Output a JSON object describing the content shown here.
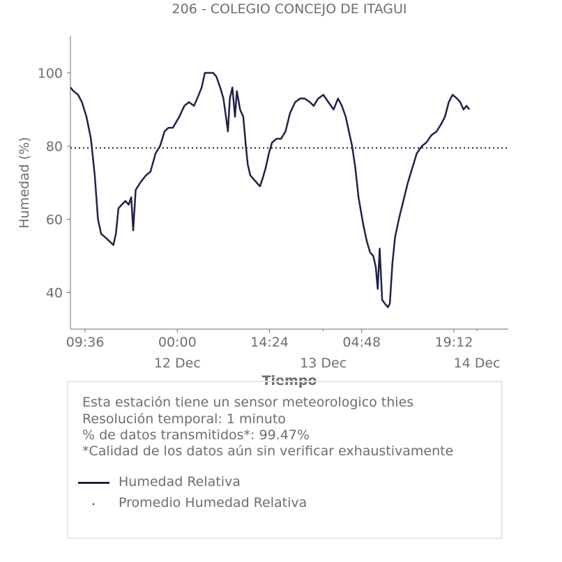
{
  "chart_data": {
    "type": "line",
    "title": "206 - COLEGIO CONCEJO DE ITAGUI",
    "xlabel": "Tiempo",
    "ylabel": "Humedad (%)",
    "ylim": [
      30,
      110
    ],
    "yticks": [
      40,
      60,
      80,
      100
    ],
    "x_range_hours": [
      -16.7,
      51.7
    ],
    "x_ticks": [
      {
        "hour": -14.4,
        "label": "09:36",
        "sublabel": ""
      },
      {
        "hour": 0,
        "label": "00:00",
        "sublabel": "12 Dec"
      },
      {
        "hour": 14.4,
        "label": "14:24",
        "sublabel": ""
      },
      {
        "hour": 22.8,
        "label": "",
        "sublabel": "13 Dec"
      },
      {
        "hour": 28.8,
        "label": "04:48",
        "sublabel": ""
      },
      {
        "hour": 43.2,
        "label": "19:12",
        "sublabel": ""
      },
      {
        "hour": 46.8,
        "label": "",
        "sublabel": "14 Dec"
      }
    ],
    "grid": false,
    "series": [
      {
        "name": "Humedad Relativa",
        "color": "#20224a",
        "style": "solid",
        "points": [
          [
            -16.7,
            96
          ],
          [
            -16.2,
            95
          ],
          [
            -15.5,
            94
          ],
          [
            -14.9,
            92
          ],
          [
            -14.2,
            88
          ],
          [
            -13.5,
            82
          ],
          [
            -12.9,
            72
          ],
          [
            -12.4,
            60
          ],
          [
            -11.9,
            56
          ],
          [
            -11.2,
            55
          ],
          [
            -10.6,
            54
          ],
          [
            -10.0,
            53
          ],
          [
            -9.6,
            56
          ],
          [
            -9.2,
            63
          ],
          [
            -8.7,
            64
          ],
          [
            -8.1,
            65
          ],
          [
            -7.6,
            64
          ],
          [
            -7.2,
            66
          ],
          [
            -6.9,
            57
          ],
          [
            -6.5,
            68
          ],
          [
            -5.8,
            70
          ],
          [
            -4.9,
            72
          ],
          [
            -4.2,
            73
          ],
          [
            -3.4,
            78
          ],
          [
            -2.7,
            80
          ],
          [
            -2.0,
            84
          ],
          [
            -1.4,
            85
          ],
          [
            -0.7,
            85
          ],
          [
            0.3,
            88
          ],
          [
            1.1,
            91
          ],
          [
            1.8,
            92
          ],
          [
            2.6,
            91
          ],
          [
            3.1,
            93
          ],
          [
            3.8,
            96
          ],
          [
            4.3,
            100
          ],
          [
            4.9,
            100
          ],
          [
            5.6,
            100
          ],
          [
            6.1,
            99
          ],
          [
            6.7,
            96
          ],
          [
            7.2,
            93
          ],
          [
            7.6,
            88
          ],
          [
            7.9,
            84
          ],
          [
            8.2,
            93
          ],
          [
            8.6,
            96
          ],
          [
            9.0,
            88
          ],
          [
            9.3,
            95
          ],
          [
            9.8,
            90
          ],
          [
            10.3,
            88
          ],
          [
            10.7,
            80
          ],
          [
            11.0,
            75
          ],
          [
            11.4,
            72
          ],
          [
            11.9,
            71
          ],
          [
            12.4,
            70
          ],
          [
            12.9,
            69
          ],
          [
            13.3,
            71
          ],
          [
            13.8,
            74
          ],
          [
            14.3,
            78
          ],
          [
            14.8,
            81
          ],
          [
            15.5,
            82
          ],
          [
            16.2,
            82
          ],
          [
            16.9,
            84
          ],
          [
            17.6,
            89
          ],
          [
            18.4,
            92
          ],
          [
            19.2,
            93
          ],
          [
            19.9,
            93
          ],
          [
            20.7,
            92
          ],
          [
            21.3,
            91
          ],
          [
            22.0,
            93
          ],
          [
            22.8,
            94
          ],
          [
            23.6,
            92
          ],
          [
            24.4,
            90
          ],
          [
            25.1,
            93
          ],
          [
            25.7,
            91
          ],
          [
            26.3,
            88
          ],
          [
            26.8,
            84
          ],
          [
            27.3,
            80
          ],
          [
            27.8,
            74
          ],
          [
            28.3,
            66
          ],
          [
            28.7,
            62
          ],
          [
            29.1,
            58
          ],
          [
            29.6,
            54
          ],
          [
            30.1,
            51
          ],
          [
            30.6,
            50
          ],
          [
            31.0,
            47
          ],
          [
            31.3,
            41
          ],
          [
            31.6,
            52
          ],
          [
            32.0,
            38
          ],
          [
            32.4,
            37
          ],
          [
            32.9,
            36
          ],
          [
            33.2,
            37
          ],
          [
            33.6,
            48
          ],
          [
            34.0,
            55
          ],
          [
            34.6,
            60
          ],
          [
            35.3,
            65
          ],
          [
            36.0,
            70
          ],
          [
            36.7,
            74
          ],
          [
            37.4,
            78
          ],
          [
            38.2,
            80
          ],
          [
            38.9,
            81
          ],
          [
            39.7,
            83
          ],
          [
            40.5,
            84
          ],
          [
            41.2,
            86
          ],
          [
            41.8,
            88
          ],
          [
            42.4,
            92
          ],
          [
            43.0,
            94
          ],
          [
            43.7,
            93
          ],
          [
            44.2,
            92
          ],
          [
            44.7,
            90
          ],
          [
            45.2,
            91
          ],
          [
            45.6,
            90
          ]
        ]
      },
      {
        "name": "Promedio Humedad Relativa",
        "color": "#20224a",
        "style": "dotted",
        "value": 79.5
      }
    ]
  },
  "info": {
    "line1": "Esta estación tiene un sensor meteorologico thies",
    "line2": "Resolución temporal: 1 minuto",
    "line3": "% de datos transmitidos*: 99.47%",
    "line4": "*Calidad de los datos aún sin verificar exhaustivamente"
  },
  "legend": {
    "humedad_label": "Humedad Relativa",
    "promedio_label": "Promedio Humedad Relativa"
  }
}
